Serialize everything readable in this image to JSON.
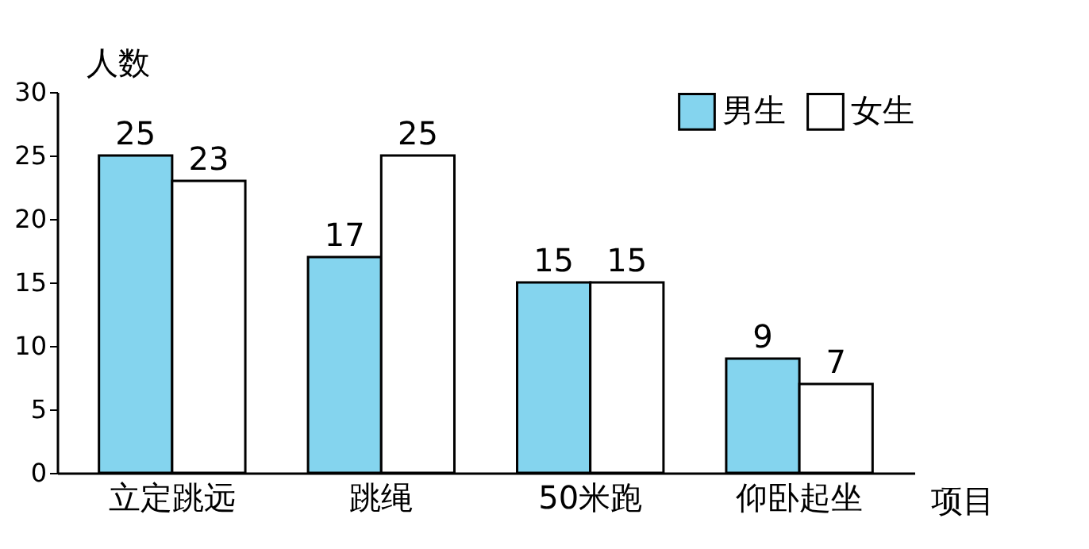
{
  "chart_data": {
    "type": "bar",
    "ylabel": "人数",
    "xlabel": "项目",
    "categories": [
      "立定跳远",
      "跳绳",
      "50米跑",
      "仰卧起坐"
    ],
    "series": [
      {
        "name": "男生",
        "color": "#84d4ee",
        "values": [
          25,
          17,
          15,
          9
        ]
      },
      {
        "name": "女生",
        "color": "#ffffff",
        "values": [
          23,
          25,
          15,
          7
        ]
      }
    ],
    "ylim": [
      0,
      30
    ],
    "yticks": [
      0,
      5,
      10,
      15,
      20,
      25,
      30
    ],
    "grid": false,
    "legend": "top right",
    "data_labels": true
  }
}
